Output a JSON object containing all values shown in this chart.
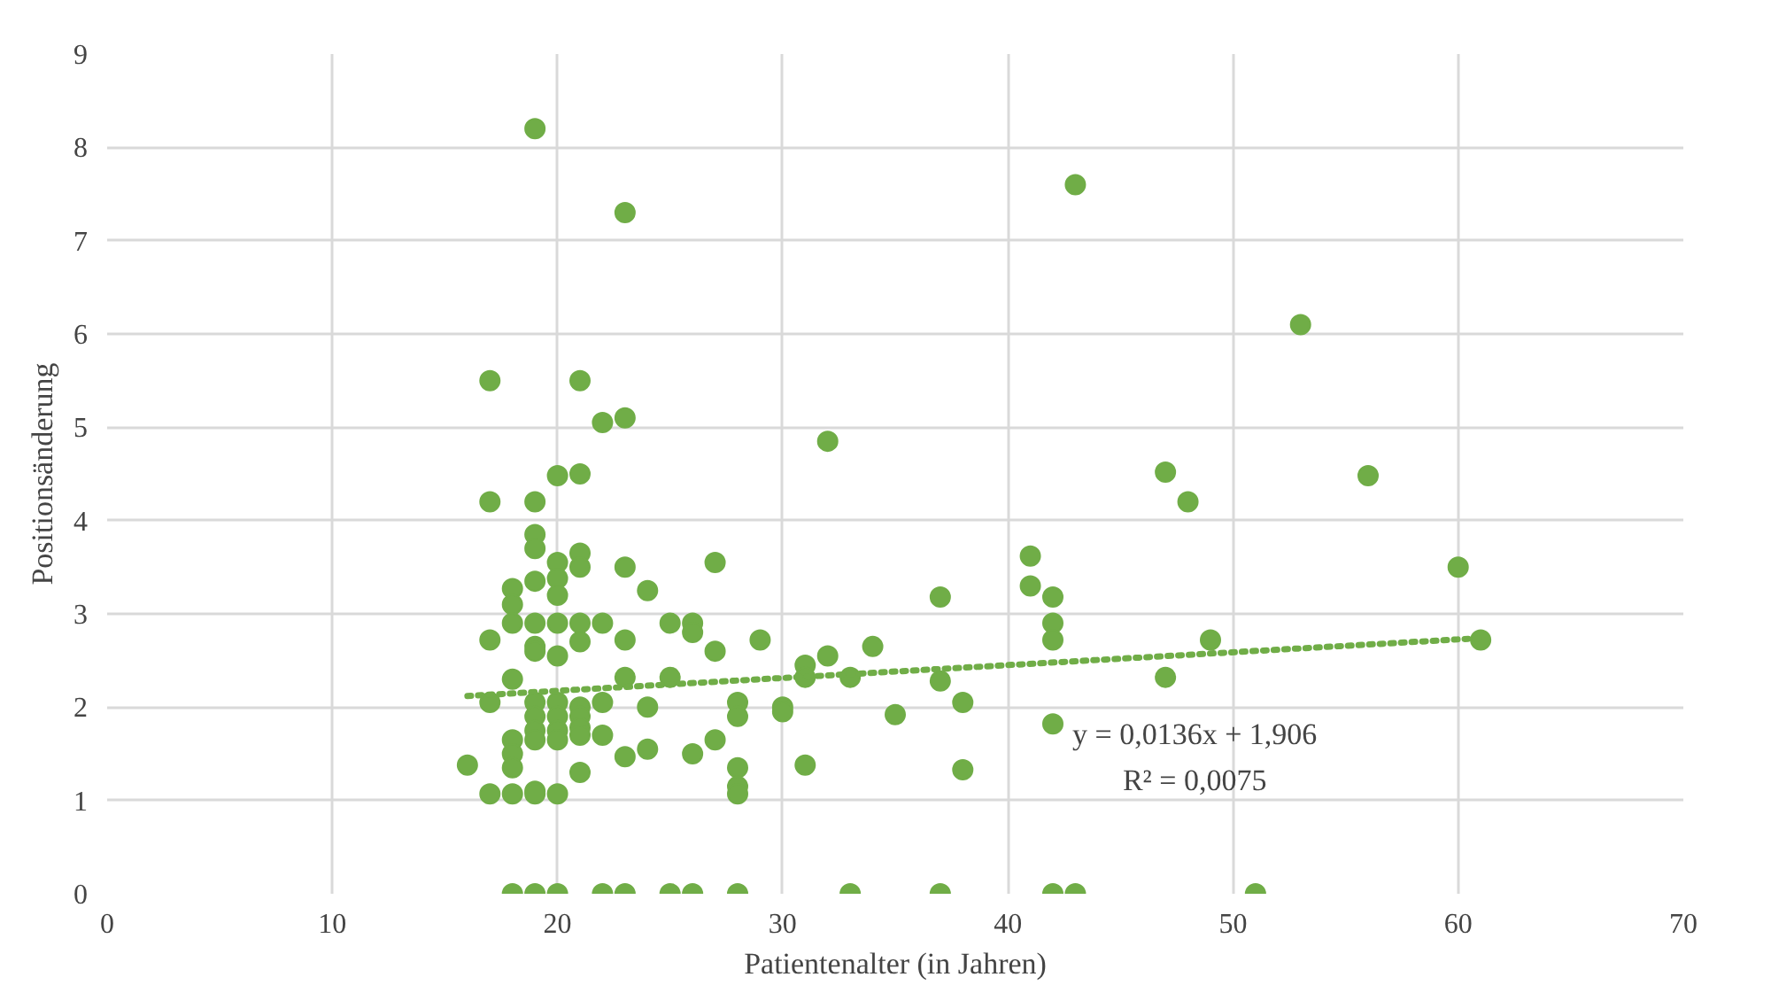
{
  "chart_data": {
    "type": "scatter",
    "xlabel": "Patientenalter (in Jahren)",
    "ylabel": "Positionsänderung",
    "xlim": [
      0,
      70
    ],
    "xticks": [
      0,
      10,
      20,
      30,
      40,
      50,
      60,
      70
    ],
    "ylim": [
      0,
      9
    ],
    "yticks": [
      0,
      1,
      2,
      3,
      4,
      5,
      6,
      7,
      8,
      9
    ],
    "grid": true,
    "marker": "circle",
    "series": [
      {
        "color": "#70ad47",
        "x": [
          16,
          17,
          17,
          17,
          17,
          17,
          18,
          18,
          18,
          18,
          18,
          18,
          18,
          18,
          18,
          19,
          19,
          19,
          19,
          19,
          19,
          19,
          19,
          19,
          19,
          19,
          19,
          19,
          19,
          19,
          20,
          20,
          20,
          20,
          20,
          20,
          20,
          20,
          20,
          20,
          20,
          20,
          21,
          21,
          21,
          21,
          21,
          21,
          21,
          21,
          21,
          21,
          21,
          22,
          22,
          22,
          22,
          22,
          23,
          23,
          23,
          23,
          23,
          23,
          23,
          24,
          24,
          24,
          25,
          25,
          25,
          26,
          26,
          26,
          26,
          27,
          27,
          27,
          28,
          28,
          28,
          28,
          28,
          28,
          29,
          30,
          30,
          31,
          31,
          31,
          32,
          32,
          33,
          33,
          34,
          35,
          37,
          37,
          37,
          38,
          38,
          41,
          41,
          42,
          42,
          42,
          42,
          42,
          43,
          43,
          47,
          47,
          48,
          49,
          51,
          53,
          56,
          60,
          61
        ],
        "values": [
          1.38,
          5.5,
          4.2,
          2.72,
          2.05,
          1.07,
          3.27,
          3.1,
          2.9,
          2.3,
          1.65,
          1.5,
          1.35,
          1.07,
          0,
          8.2,
          4.2,
          3.85,
          3.7,
          3.35,
          2.9,
          2.65,
          2.6,
          2.05,
          1.9,
          1.75,
          1.65,
          1.1,
          1.07,
          0,
          4.48,
          3.55,
          3.38,
          3.2,
          2.9,
          2.55,
          2.05,
          1.9,
          1.75,
          1.65,
          1.07,
          0,
          5.5,
          4.5,
          3.65,
          3.5,
          2.9,
          2.7,
          2.0,
          1.9,
          1.78,
          1.7,
          1.3,
          5.05,
          2.9,
          2.05,
          1.7,
          0,
          7.3,
          5.1,
          3.5,
          2.72,
          2.32,
          1.47,
          0,
          3.25,
          2.0,
          1.55,
          2.9,
          2.32,
          0,
          2.9,
          2.8,
          1.5,
          0,
          3.55,
          2.6,
          1.65,
          2.05,
          1.9,
          1.35,
          1.15,
          1.07,
          0,
          2.72,
          2.0,
          1.95,
          2.45,
          2.32,
          1.38,
          4.85,
          2.55,
          2.32,
          0,
          2.65,
          1.92,
          3.18,
          2.28,
          0,
          2.05,
          1.33,
          3.62,
          3.3,
          3.18,
          2.9,
          2.72,
          1.82,
          0,
          7.6,
          0,
          4.52,
          2.32,
          4.2,
          2.72,
          0,
          6.1,
          4.48,
          3.5,
          2.72
        ]
      },
      {
        "type": "line",
        "line_style": "dotted",
        "marker": "none",
        "color": "#70ad47",
        "x": [
          16,
          61
        ],
        "values": [
          2.12,
          2.74
        ]
      }
    ],
    "annotations": [
      "y = 0,0136x + 1,906",
      "R² = 0,0075"
    ]
  }
}
